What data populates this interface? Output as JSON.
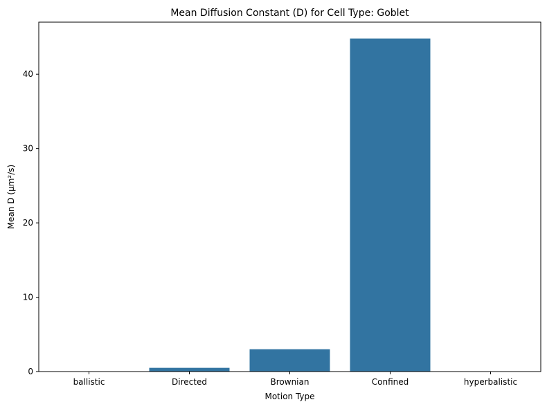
{
  "chart_data": {
    "type": "bar",
    "title": "Mean Diffusion Constant (D) for Cell Type: Goblet",
    "xlabel": "Motion Type",
    "ylabel": "Mean D (µm²/s)",
    "categories": [
      "ballistic",
      "Directed",
      "Brownian",
      "Confined",
      "hyperbalistic"
    ],
    "values": [
      0.0,
      0.5,
      3.0,
      44.8,
      0.0
    ],
    "ylim": [
      0,
      47
    ],
    "yticks": [
      0,
      10,
      20,
      30,
      40
    ],
    "grid": false,
    "legend": "none",
    "bar_color": "#3274a1"
  }
}
